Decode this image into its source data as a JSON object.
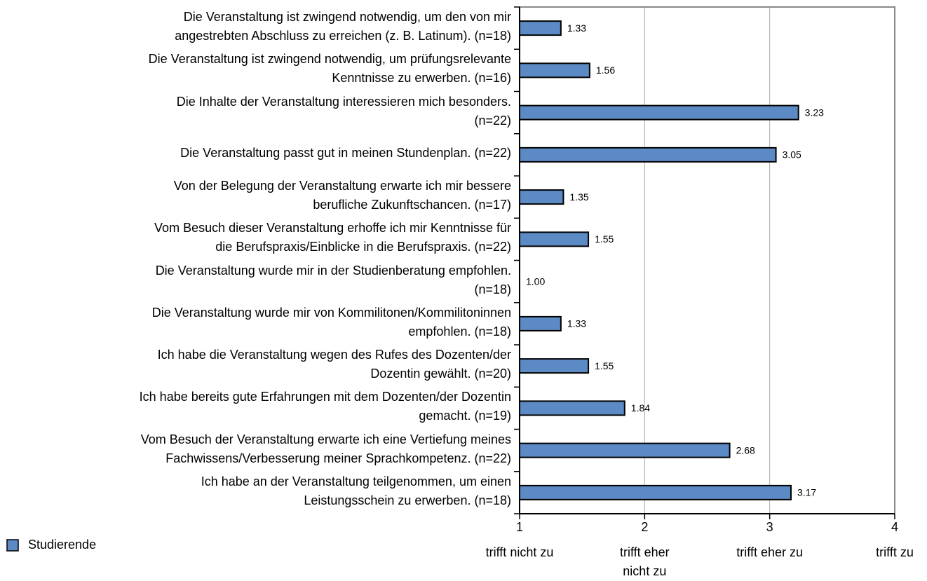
{
  "chart_data": {
    "type": "bar",
    "orientation": "horizontal",
    "categories": [
      "Die Veranstaltung ist zwingend notwendig, um den von mir\nangestrebten Abschluss zu erreichen (z. B. Latinum).   (n=18)",
      "Die Veranstaltung ist zwingend notwendig, um prüfungsrelevante\nKenntnisse zu erwerben.   (n=16)",
      "Die Inhalte der Veranstaltung interessieren mich besonders.\n(n=22)",
      "Die Veranstaltung passt gut in meinen Stundenplan.   (n=22)",
      "Von der Belegung der Veranstaltung erwarte ich mir bessere\nberufliche Zukunftschancen.   (n=17)",
      "Vom Besuch dieser Veranstaltung erhoffe ich mir Kenntnisse für\ndie Berufspraxis/Einblicke in die Berufspraxis.   (n=22)",
      "Die Veranstaltung wurde mir in der Studienberatung empfohlen.\n(n=18)",
      "Die Veranstaltung wurde mir von Kommilitonen/Kommilitoninnen\nempfohlen.   (n=18)",
      "Ich habe die Veranstaltung wegen des Rufes des Dozenten/der\nDozentin gewählt.   (n=20)",
      "Ich habe bereits gute Erfahrungen mit dem Dozenten/der Dozentin\ngemacht.   (n=19)",
      "Vom Besuch der Veranstaltung erwarte ich eine Vertiefung meines\nFachwissens/Verbesserung meiner Sprachkompetenz.   (n=22)",
      "Ich habe an der Veranstaltung teilgenommen, um einen\nLeistungsschein zu erwerben.   (n=18)"
    ],
    "series": [
      {
        "name": "Studierende",
        "color": "#5b8ac4",
        "values": [
          1.33,
          1.56,
          3.23,
          3.05,
          1.35,
          1.55,
          1.0,
          1.33,
          1.55,
          1.84,
          2.68,
          3.17
        ],
        "value_labels": [
          "1.33",
          "1.56",
          "3.23",
          "3.05",
          "1.35",
          "1.55",
          "1.00",
          "1.33",
          "1.55",
          "1.84",
          "2.68",
          "3.17"
        ]
      }
    ],
    "xlim": [
      1,
      4
    ],
    "xticks": [
      1,
      2,
      3,
      4
    ],
    "scale_labels": [
      "trifft nicht zu",
      "trifft eher\nnicht  zu",
      "trifft eher zu",
      "trifft zu"
    ],
    "grid": true,
    "legend": "bottom-left"
  }
}
